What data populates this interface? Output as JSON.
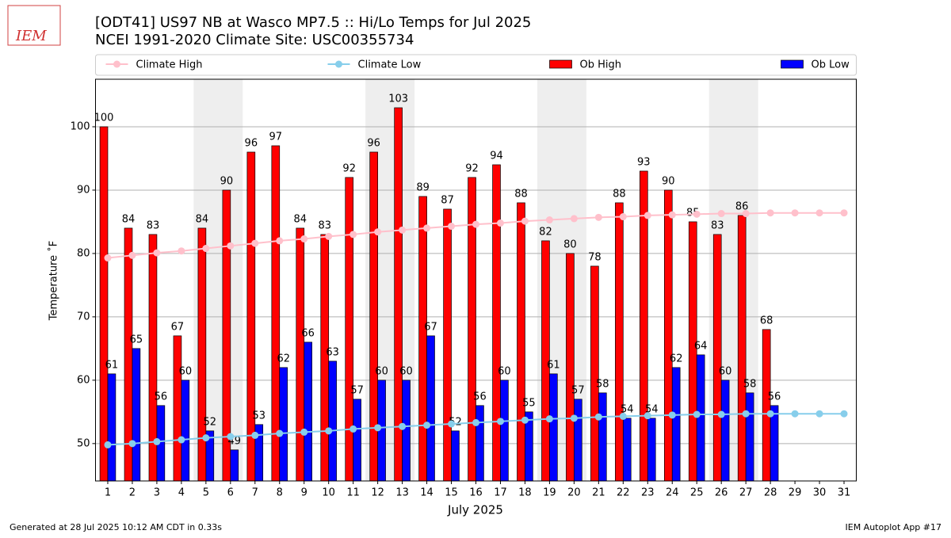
{
  "chart_data": {
    "type": "bar",
    "title": "[ODT41] US97 NB at Wasco MP7.5  :: Hi/Lo Temps for Jul 2025",
    "subtitle": "NCEI 1991-2020 Climate Site: USC00355734",
    "logo_text": "IEM",
    "xlabel": "July 2025",
    "ylabel": "Temperature ˚F",
    "footer_left": "Generated at 28 Jul 2025 10:12 AM CDT in 0.33s",
    "footer_right": "IEM Autoplot App #17",
    "x": [
      1,
      2,
      3,
      4,
      5,
      6,
      7,
      8,
      9,
      10,
      11,
      12,
      13,
      14,
      15,
      16,
      17,
      18,
      19,
      20,
      21,
      22,
      23,
      24,
      25,
      26,
      27,
      28,
      29,
      30,
      31
    ],
    "xlim": [
      0.5,
      31.5
    ],
    "ylim": [
      44.1,
      107.5
    ],
    "yticks": [
      50,
      60,
      70,
      80,
      90,
      100
    ],
    "grid": true,
    "shaded_days": [
      [
        5,
        6
      ],
      [
        12,
        13
      ],
      [
        19,
        20
      ],
      [
        26,
        27
      ]
    ],
    "shade_color": "#eeeeee",
    "legend": "top",
    "series": [
      {
        "name": "Climate High",
        "type": "line",
        "color": "#ffc0cb",
        "values": [
          79.3,
          79.7,
          80.1,
          80.4,
          80.8,
          81.2,
          81.6,
          82.0,
          82.3,
          82.7,
          83.0,
          83.4,
          83.7,
          84.0,
          84.3,
          84.6,
          84.8,
          85.1,
          85.3,
          85.5,
          85.7,
          85.8,
          86.0,
          86.1,
          86.2,
          86.3,
          86.3,
          86.4,
          86.4,
          86.4,
          86.4
        ]
      },
      {
        "name": "Climate Low",
        "type": "line",
        "color": "#87ceeb",
        "values": [
          49.8,
          50.0,
          50.3,
          50.6,
          50.9,
          51.1,
          51.3,
          51.6,
          51.8,
          52.0,
          52.3,
          52.5,
          52.7,
          52.9,
          53.1,
          53.3,
          53.5,
          53.7,
          53.9,
          54.0,
          54.2,
          54.3,
          54.4,
          54.5,
          54.6,
          54.6,
          54.7,
          54.7,
          54.7,
          54.7,
          54.7
        ]
      },
      {
        "name": "Ob High",
        "type": "bar",
        "color": "#ff0000",
        "values": [
          100,
          84,
          83,
          67,
          84,
          90,
          96,
          97,
          84,
          83,
          92,
          96,
          103,
          89,
          87,
          92,
          94,
          88,
          82,
          80,
          78,
          88,
          93,
          90,
          85,
          83,
          86,
          68,
          null,
          null,
          null
        ]
      },
      {
        "name": "Ob Low",
        "type": "bar",
        "color": "#0000ff",
        "values": [
          61,
          65,
          56,
          60,
          52,
          49,
          53,
          62,
          66,
          63,
          57,
          60,
          60,
          67,
          52,
          56,
          60,
          55,
          61,
          57,
          58,
          54,
          54,
          62,
          64,
          60,
          58,
          56,
          null,
          null,
          null
        ]
      }
    ]
  }
}
